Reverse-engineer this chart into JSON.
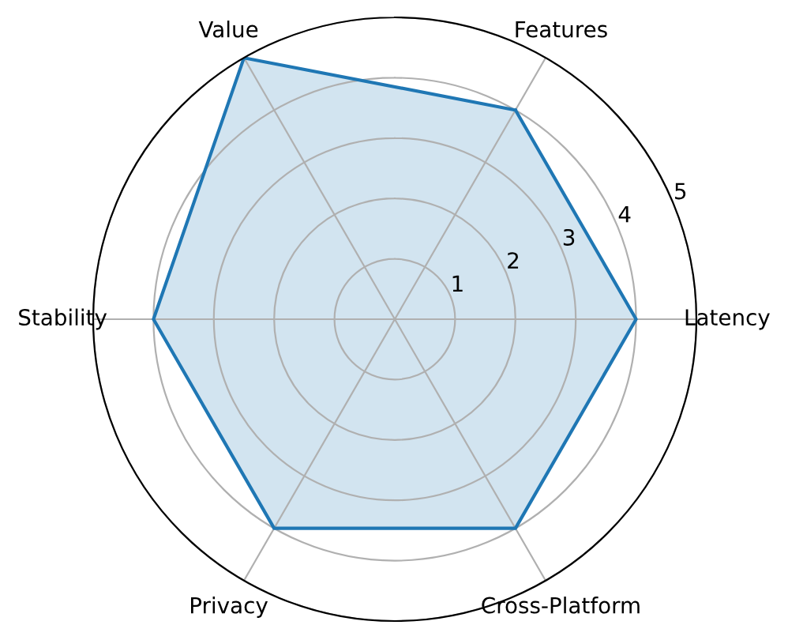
{
  "chart_data": {
    "type": "radar",
    "categories": [
      "Features",
      "Latency",
      "Cross-Platform",
      "Privacy",
      "Stability",
      "Value"
    ],
    "series": [
      {
        "color": "#1f77b4",
        "values": [
          4,
          4,
          4,
          4,
          4,
          5
        ]
      }
    ],
    "ylim": [
      0,
      5
    ],
    "yticks": [
      1,
      2,
      3,
      4,
      5
    ],
    "grid": true
  }
}
